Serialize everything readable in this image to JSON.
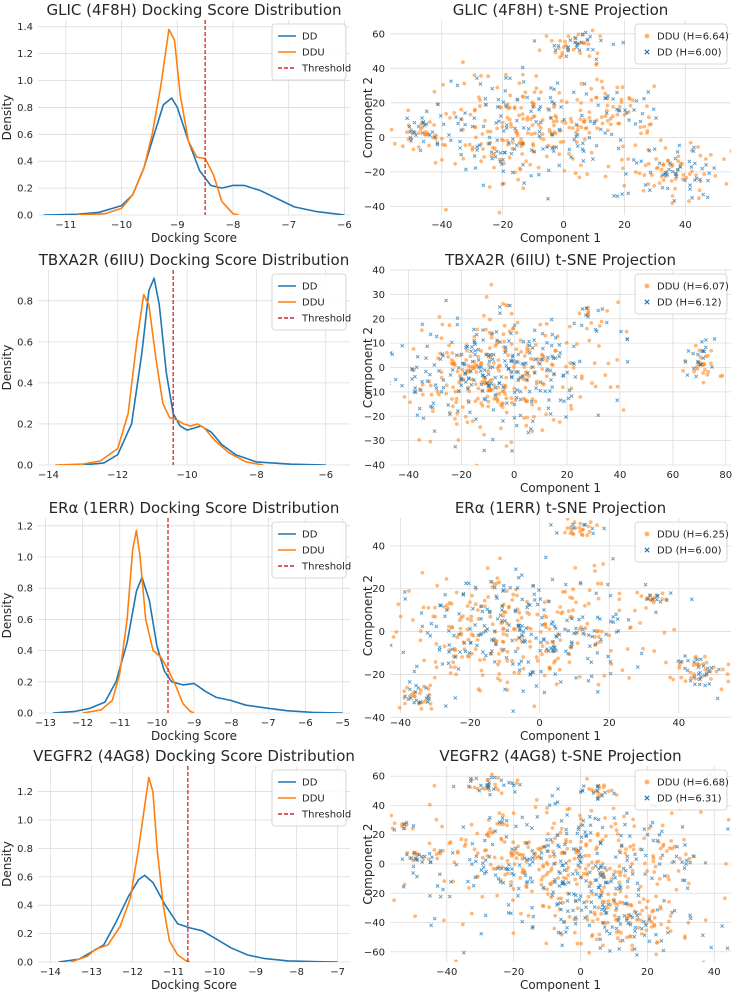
{
  "chart_data": [
    {
      "type": "line",
      "title": "GLIC (4F8H) Docking Score Distribution",
      "xlabel": "Docking Score",
      "ylabel": "Density",
      "xlim": [
        -11.5,
        -5.9
      ],
      "ylim": [
        0,
        1.45
      ],
      "xticks": [
        -11,
        -10,
        -9,
        -8,
        -7,
        -6
      ],
      "yticks": [
        0.0,
        0.2,
        0.4,
        0.6,
        0.8,
        1.0,
        1.2,
        1.4
      ],
      "threshold": -8.5,
      "legend": "top-right",
      "legend_entries": [
        "DD",
        "DDU",
        "Threshold"
      ],
      "series": [
        {
          "name": "DD",
          "color": "#1f77b4",
          "points": [
            [
              -11.4,
              0
            ],
            [
              -10.8,
              0.005
            ],
            [
              -10.4,
              0.02
            ],
            [
              -10.0,
              0.07
            ],
            [
              -9.8,
              0.15
            ],
            [
              -9.6,
              0.35
            ],
            [
              -9.4,
              0.62
            ],
            [
              -9.25,
              0.82
            ],
            [
              -9.1,
              0.87
            ],
            [
              -9.0,
              0.8
            ],
            [
              -8.8,
              0.55
            ],
            [
              -8.6,
              0.33
            ],
            [
              -8.4,
              0.22
            ],
            [
              -8.2,
              0.2
            ],
            [
              -8.0,
              0.22
            ],
            [
              -7.8,
              0.22
            ],
            [
              -7.5,
              0.18
            ],
            [
              -7.2,
              0.12
            ],
            [
              -6.9,
              0.06
            ],
            [
              -6.5,
              0.025
            ],
            [
              -6.1,
              0.005
            ],
            [
              -6.0,
              0
            ]
          ]
        },
        {
          "name": "DDU",
          "color": "#ff7f0e",
          "points": [
            [
              -10.8,
              0
            ],
            [
              -10.3,
              0.01
            ],
            [
              -10.0,
              0.05
            ],
            [
              -9.8,
              0.15
            ],
            [
              -9.6,
              0.35
            ],
            [
              -9.45,
              0.6
            ],
            [
              -9.3,
              0.95
            ],
            [
              -9.15,
              1.38
            ],
            [
              -9.05,
              1.3
            ],
            [
              -8.95,
              0.9
            ],
            [
              -8.8,
              0.55
            ],
            [
              -8.65,
              0.43
            ],
            [
              -8.5,
              0.42
            ],
            [
              -8.35,
              0.3
            ],
            [
              -8.2,
              0.1
            ],
            [
              -8.0,
              0.01
            ],
            [
              -7.9,
              0
            ]
          ]
        }
      ]
    },
    {
      "type": "scatter",
      "title": "GLIC (4F8H) t-SNE Projection",
      "xlabel": "Component 1",
      "ylabel": "Component 2",
      "xlim": [
        -57,
        55
      ],
      "ylim": [
        -45,
        68
      ],
      "xticks": [
        -40,
        -20,
        0,
        20,
        40
      ],
      "yticks": [
        -40,
        -20,
        0,
        20,
        40,
        60
      ],
      "legend": "top-right",
      "series": [
        {
          "name": "DDU (H=6.64)",
          "color": "#ff7f0e",
          "marker": "dot"
        },
        {
          "name": "DD (H=6.00)",
          "color": "#1f77b4",
          "marker": "x"
        }
      ],
      "clusters": [
        {
          "x": 5,
          "y": 55,
          "sx": 6,
          "sy": 4,
          "n": 55
        },
        {
          "x": -47,
          "y": 3,
          "sx": 4,
          "sy": 5,
          "n": 40
        },
        {
          "x": 35,
          "y": -22,
          "sx": 10,
          "sy": 9,
          "n": 120
        },
        {
          "x": -12,
          "y": 5,
          "sx": 17,
          "sy": 15,
          "n": 360
        },
        {
          "x": 15,
          "y": 15,
          "sx": 8,
          "sy": 8,
          "n": 60
        }
      ]
    },
    {
      "type": "line",
      "title": "TBXA2R (6IIU) Docking Score Distribution",
      "xlabel": "",
      "ylabel": "Density",
      "xlim": [
        -14.3,
        -5.3
      ],
      "ylim": [
        0,
        0.95
      ],
      "xticks": [
        -14,
        -12,
        -10,
        -8,
        -6
      ],
      "yticks": [
        0.0,
        0.2,
        0.4,
        0.6,
        0.8
      ],
      "threshold": -10.4,
      "legend": "top-right",
      "legend_entries": [
        "DD",
        "DDU",
        "Threshold"
      ],
      "series": [
        {
          "name": "DD",
          "color": "#1f77b4",
          "points": [
            [
              -13.0,
              0
            ],
            [
              -12.4,
              0.01
            ],
            [
              -12.0,
              0.05
            ],
            [
              -11.6,
              0.2
            ],
            [
              -11.3,
              0.55
            ],
            [
              -11.1,
              0.85
            ],
            [
              -10.95,
              0.91
            ],
            [
              -10.8,
              0.78
            ],
            [
              -10.6,
              0.45
            ],
            [
              -10.4,
              0.25
            ],
            [
              -10.2,
              0.19
            ],
            [
              -10.0,
              0.17
            ],
            [
              -9.8,
              0.18
            ],
            [
              -9.6,
              0.19
            ],
            [
              -9.3,
              0.16
            ],
            [
              -9.0,
              0.1
            ],
            [
              -8.6,
              0.05
            ],
            [
              -8.0,
              0.015
            ],
            [
              -7.0,
              0.004
            ],
            [
              -6.0,
              0
            ]
          ]
        },
        {
          "name": "DDU",
          "color": "#ff7f0e",
          "points": [
            [
              -13.8,
              0
            ],
            [
              -13.0,
              0.005
            ],
            [
              -12.5,
              0.02
            ],
            [
              -12.0,
              0.08
            ],
            [
              -11.7,
              0.25
            ],
            [
              -11.45,
              0.6
            ],
            [
              -11.25,
              0.83
            ],
            [
              -11.1,
              0.78
            ],
            [
              -10.9,
              0.52
            ],
            [
              -10.7,
              0.3
            ],
            [
              -10.5,
              0.23
            ],
            [
              -10.3,
              0.22
            ],
            [
              -10.1,
              0.2
            ],
            [
              -9.9,
              0.19
            ],
            [
              -9.7,
              0.2
            ],
            [
              -9.5,
              0.18
            ],
            [
              -9.2,
              0.12
            ],
            [
              -8.8,
              0.06
            ],
            [
              -8.3,
              0.015
            ],
            [
              -7.8,
              0
            ]
          ]
        }
      ]
    },
    {
      "type": "scatter",
      "title": "TBXA2R (6IIU) t-SNE Projection",
      "xlabel": "Component 1",
      "ylabel": "Component 2",
      "xlim": [
        -47,
        82
      ],
      "ylim": [
        -40,
        40
      ],
      "xticks": [
        -40,
        -20,
        0,
        20,
        40,
        60,
        80
      ],
      "yticks": [
        -40,
        -30,
        -20,
        -10,
        0,
        10,
        20,
        30,
        40
      ],
      "legend": "top-right",
      "series": [
        {
          "name": "DDU (H=6.07)",
          "color": "#ff7f0e",
          "marker": "dot"
        },
        {
          "name": "DD (H=6.12)",
          "color": "#1f77b4",
          "marker": "x"
        }
      ],
      "clusters": [
        {
          "x": 71,
          "y": 2,
          "sx": 3,
          "sy": 4,
          "n": 45
        },
        {
          "x": -5,
          "y": -3,
          "sx": 18,
          "sy": 13,
          "n": 520
        },
        {
          "x": 30,
          "y": 20,
          "sx": 4,
          "sy": 4,
          "n": 20
        }
      ]
    },
    {
      "type": "line",
      "title": "ERα (1ERR) Docking Score Distribution",
      "xlabel": "Docking Score",
      "ylabel": "Density",
      "xlim": [
        -13.2,
        -4.8
      ],
      "ylim": [
        0,
        1.25
      ],
      "xticks": [
        -13,
        -12,
        -11,
        -10,
        -9,
        -8,
        -7,
        -6,
        -5
      ],
      "yticks": [
        0.0,
        0.2,
        0.4,
        0.6,
        0.8,
        1.0,
        1.2
      ],
      "threshold": -9.7,
      "legend": "top-right",
      "legend_entries": [
        "DD",
        "DDU",
        "Threshold"
      ],
      "series": [
        {
          "name": "DD",
          "color": "#1f77b4",
          "points": [
            [
              -12.8,
              0
            ],
            [
              -12.2,
              0.01
            ],
            [
              -11.8,
              0.03
            ],
            [
              -11.4,
              0.07
            ],
            [
              -11.1,
              0.2
            ],
            [
              -10.8,
              0.45
            ],
            [
              -10.55,
              0.78
            ],
            [
              -10.4,
              0.87
            ],
            [
              -10.2,
              0.72
            ],
            [
              -10.0,
              0.43
            ],
            [
              -9.8,
              0.27
            ],
            [
              -9.6,
              0.2
            ],
            [
              -9.3,
              0.18
            ],
            [
              -9.0,
              0.19
            ],
            [
              -8.7,
              0.14
            ],
            [
              -8.4,
              0.1
            ],
            [
              -8.0,
              0.08
            ],
            [
              -7.6,
              0.05
            ],
            [
              -7.0,
              0.03
            ],
            [
              -6.5,
              0.015
            ],
            [
              -5.8,
              0.004
            ],
            [
              -5.0,
              0
            ]
          ]
        },
        {
          "name": "DDU",
          "color": "#ff7f0e",
          "points": [
            [
              -12.0,
              0
            ],
            [
              -11.5,
              0.02
            ],
            [
              -11.2,
              0.08
            ],
            [
              -11.0,
              0.25
            ],
            [
              -10.8,
              0.6
            ],
            [
              -10.65,
              1.05
            ],
            [
              -10.55,
              1.17
            ],
            [
              -10.45,
              1.0
            ],
            [
              -10.3,
              0.6
            ],
            [
              -10.1,
              0.4
            ],
            [
              -9.9,
              0.36
            ],
            [
              -9.7,
              0.28
            ],
            [
              -9.5,
              0.18
            ],
            [
              -9.3,
              0.06
            ],
            [
              -9.1,
              0.01
            ],
            [
              -9.0,
              0
            ]
          ]
        }
      ]
    },
    {
      "type": "scatter",
      "title": "ERα (1ERR) t-SNE Projection",
      "xlabel": "Component 1",
      "ylabel": "Component 2",
      "xlim": [
        -43,
        55
      ],
      "ylim": [
        -38,
        53
      ],
      "xticks": [
        -40,
        -20,
        0,
        20,
        40
      ],
      "yticks": [
        -40,
        -20,
        0,
        20,
        40
      ],
      "legend": "top-right",
      "series": [
        {
          "name": "DDU (H=6.25)",
          "color": "#ff7f0e",
          "marker": "dot"
        },
        {
          "name": "DD (H=6.00)",
          "color": "#1f77b4",
          "marker": "x"
        }
      ],
      "clusters": [
        {
          "x": 12,
          "y": 48,
          "sx": 3,
          "sy": 2,
          "n": 30
        },
        {
          "x": -35,
          "y": -30,
          "sx": 3,
          "sy": 3,
          "n": 40
        },
        {
          "x": 46,
          "y": -18,
          "sx": 4,
          "sy": 4,
          "n": 60
        },
        {
          "x": 33,
          "y": 15,
          "sx": 3,
          "sy": 3,
          "n": 25
        },
        {
          "x": -5,
          "y": 0,
          "sx": 18,
          "sy": 14,
          "n": 480
        }
      ]
    },
    {
      "type": "line",
      "title": "VEGFR2 (4AG8) Docking Score Distribution",
      "xlabel": "Docking Score",
      "ylabel": "Density",
      "xlim": [
        -14.3,
        -6.7
      ],
      "ylim": [
        0,
        1.38
      ],
      "xticks": [
        -14,
        -13,
        -12,
        -11,
        -10,
        -9,
        -8,
        -7
      ],
      "yticks": [
        0.0,
        0.2,
        0.4,
        0.6,
        0.8,
        1.0,
        1.2
      ],
      "threshold": -10.65,
      "legend": "top-right",
      "legend_entries": [
        "DD",
        "DDU",
        "Threshold"
      ],
      "series": [
        {
          "name": "DD",
          "color": "#1f77b4",
          "points": [
            [
              -13.8,
              0
            ],
            [
              -13.3,
              0.02
            ],
            [
              -13.0,
              0.07
            ],
            [
              -12.7,
              0.12
            ],
            [
              -12.4,
              0.28
            ],
            [
              -12.1,
              0.46
            ],
            [
              -11.85,
              0.58
            ],
            [
              -11.7,
              0.61
            ],
            [
              -11.5,
              0.56
            ],
            [
              -11.2,
              0.4
            ],
            [
              -10.9,
              0.27
            ],
            [
              -10.6,
              0.24
            ],
            [
              -10.3,
              0.22
            ],
            [
              -10.0,
              0.17
            ],
            [
              -9.6,
              0.1
            ],
            [
              -9.2,
              0.05
            ],
            [
              -8.8,
              0.025
            ],
            [
              -8.2,
              0.008
            ],
            [
              -7.5,
              0.002
            ],
            [
              -7.0,
              0
            ]
          ]
        },
        {
          "name": "DDU",
          "color": "#ff7f0e",
          "points": [
            [
              -13.5,
              0
            ],
            [
              -13.1,
              0.04
            ],
            [
              -12.9,
              0.09
            ],
            [
              -12.6,
              0.12
            ],
            [
              -12.3,
              0.25
            ],
            [
              -12.05,
              0.45
            ],
            [
              -11.85,
              0.8
            ],
            [
              -11.7,
              1.1
            ],
            [
              -11.6,
              1.3
            ],
            [
              -11.5,
              1.2
            ],
            [
              -11.4,
              0.8
            ],
            [
              -11.25,
              0.4
            ],
            [
              -11.1,
              0.15
            ],
            [
              -10.9,
              0.05
            ],
            [
              -10.7,
              0.01
            ],
            [
              -10.6,
              0
            ]
          ]
        }
      ]
    },
    {
      "type": "scatter",
      "title": "VEGFR2 (4AG8) t-SNE Projection",
      "xlabel": "Component 1",
      "ylabel": "Component 2",
      "xlim": [
        -57,
        45
      ],
      "ylim": [
        -67,
        67
      ],
      "xticks": [
        -40,
        -20,
        0,
        20,
        40
      ],
      "yticks": [
        -60,
        -40,
        -20,
        0,
        20,
        40,
        60
      ],
      "legend": "top-right",
      "series": [
        {
          "name": "DDU (H=6.68)",
          "color": "#ff7f0e",
          "marker": "dot"
        },
        {
          "name": "DD (H=6.31)",
          "color": "#1f77b4",
          "marker": "x"
        }
      ],
      "clusters": [
        {
          "x": -28,
          "y": 55,
          "sx": 4,
          "sy": 3,
          "n": 40
        },
        {
          "x": 4,
          "y": 50,
          "sx": 3,
          "sy": 3,
          "n": 25
        },
        {
          "x": -53,
          "y": 26,
          "sx": 2,
          "sy": 2,
          "n": 12
        },
        {
          "x": -47,
          "y": 5,
          "sx": 3,
          "sy": 3,
          "n": 25
        },
        {
          "x": 12,
          "y": -40,
          "sx": 10,
          "sy": 10,
          "n": 140
        },
        {
          "x": -5,
          "y": 0,
          "sx": 20,
          "sy": 22,
          "n": 620
        }
      ]
    }
  ]
}
